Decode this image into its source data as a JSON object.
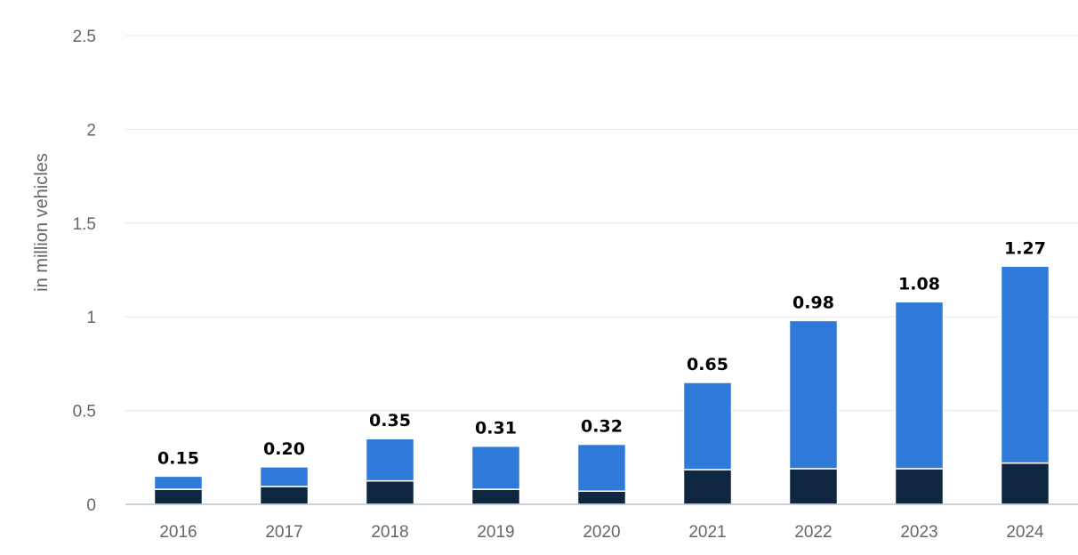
{
  "chart_data": {
    "type": "bar",
    "stacked": true,
    "ylabel": "in million vehicles",
    "xlabel": "",
    "ylim": [
      0,
      2.5
    ],
    "yticks": [
      "0",
      "0.5",
      "1",
      "1.5",
      "2",
      "2.5"
    ],
    "grid": true,
    "categories": [
      "2016",
      "2017",
      "2018",
      "2019",
      "2020",
      "2021",
      "2022",
      "2023",
      "2024"
    ],
    "series": [
      {
        "color": "#0f2741",
        "values": [
          0.08,
          0.095,
          0.125,
          0.08,
          0.07,
          0.185,
          0.19,
          0.19,
          0.22
        ]
      },
      {
        "color": "#2f7ad9",
        "values": [
          0.07,
          0.105,
          0.225,
          0.23,
          0.25,
          0.465,
          0.79,
          0.89,
          1.05
        ]
      }
    ],
    "totals": [
      "0.15",
      "0.20",
      "0.35",
      "0.31",
      "0.32",
      "0.65",
      "0.98",
      "1.08",
      "1.27"
    ]
  }
}
